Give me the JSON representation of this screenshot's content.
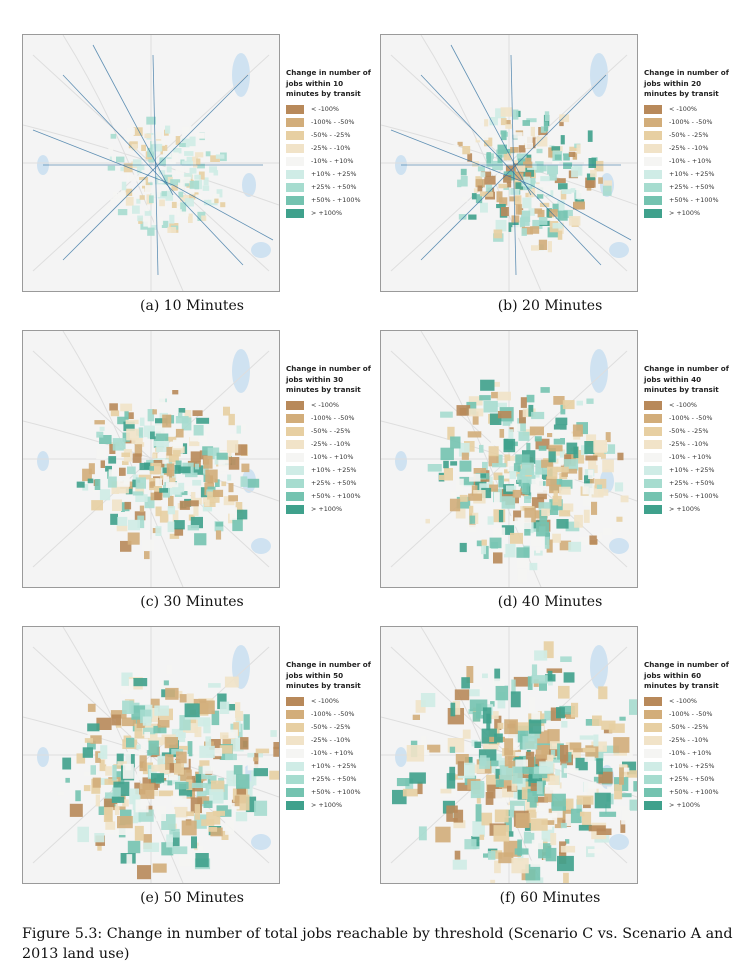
{
  "legend_labels": [
    "< -100%",
    "-100% - -50%",
    "-50% - -25%",
    "-25% - -10%",
    "-10% - +10%",
    "+10% - +25%",
    "+25% - +50%",
    "+50% - +100%",
    "> +100%"
  ],
  "legend_colors": [
    "#b8895a",
    "#d2ad7a",
    "#e7cfa2",
    "#f1e3c8",
    "#f5f5f3",
    "#cfece6",
    "#a6dccf",
    "#74c3b0",
    "#3fa18c"
  ],
  "panels": [
    {
      "legend_title": "Change in number of jobs within 10 minutes by transit",
      "caption": "(a) 10 Minutes"
    },
    {
      "legend_title": "Change in number of jobs within 20 minutes by transit",
      "caption": "(b) 20 Minutes"
    },
    {
      "legend_title": "Change in number of jobs within 30 minutes by transit",
      "caption": "(c) 30 Minutes"
    },
    {
      "legend_title": "Change in number of jobs within 40 minutes by transit",
      "caption": "(d) 40 Minutes"
    },
    {
      "legend_title": "Change in number of jobs within 50 minutes by transit",
      "caption": "(e) 50 Minutes"
    },
    {
      "legend_title": "Change in number of jobs within 60 minutes by transit",
      "caption": "(f) 60 Minutes"
    }
  ],
  "figure_caption": "Figure 5.3: Change in number of total jobs reachable by threshold (Scenario C vs. Scenario A and 2013 land use)"
}
